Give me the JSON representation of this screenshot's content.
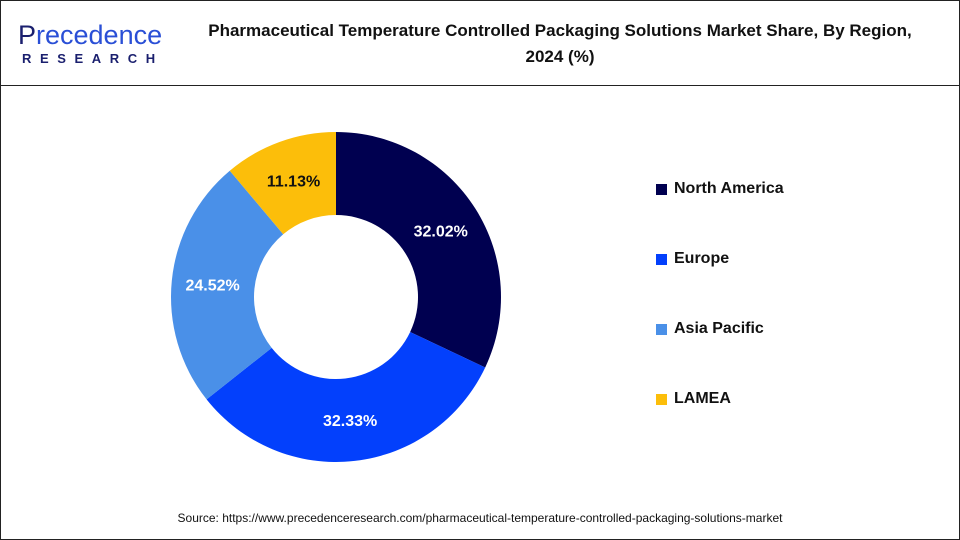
{
  "logo": {
    "brand_first": "P",
    "brand_rest": "recedence",
    "brand_sub": "RESEARCH"
  },
  "chart_data": {
    "type": "pie",
    "variant": "donut",
    "title": "Pharmaceutical Temperature Controlled Packaging Solutions Market Share, By Region, 2024 (%)",
    "categories": [
      "North America",
      "Europe",
      "Asia Pacific",
      "LAMEA"
    ],
    "values": [
      32.02,
      32.33,
      24.52,
      11.13
    ],
    "data_labels": [
      "32.02%",
      "32.33%",
      "24.52%",
      "11.13%"
    ],
    "colors": [
      "#000050",
      "#0340fc",
      "#4a90e8",
      "#fcbe0a"
    ],
    "label_colors": [
      "#ffffff",
      "#ffffff",
      "#ffffff",
      "#111111"
    ],
    "legend_position": "right"
  },
  "source": "Source: https://www.precedenceresearch.com/pharmaceutical-temperature-controlled-packaging-solutions-market"
}
